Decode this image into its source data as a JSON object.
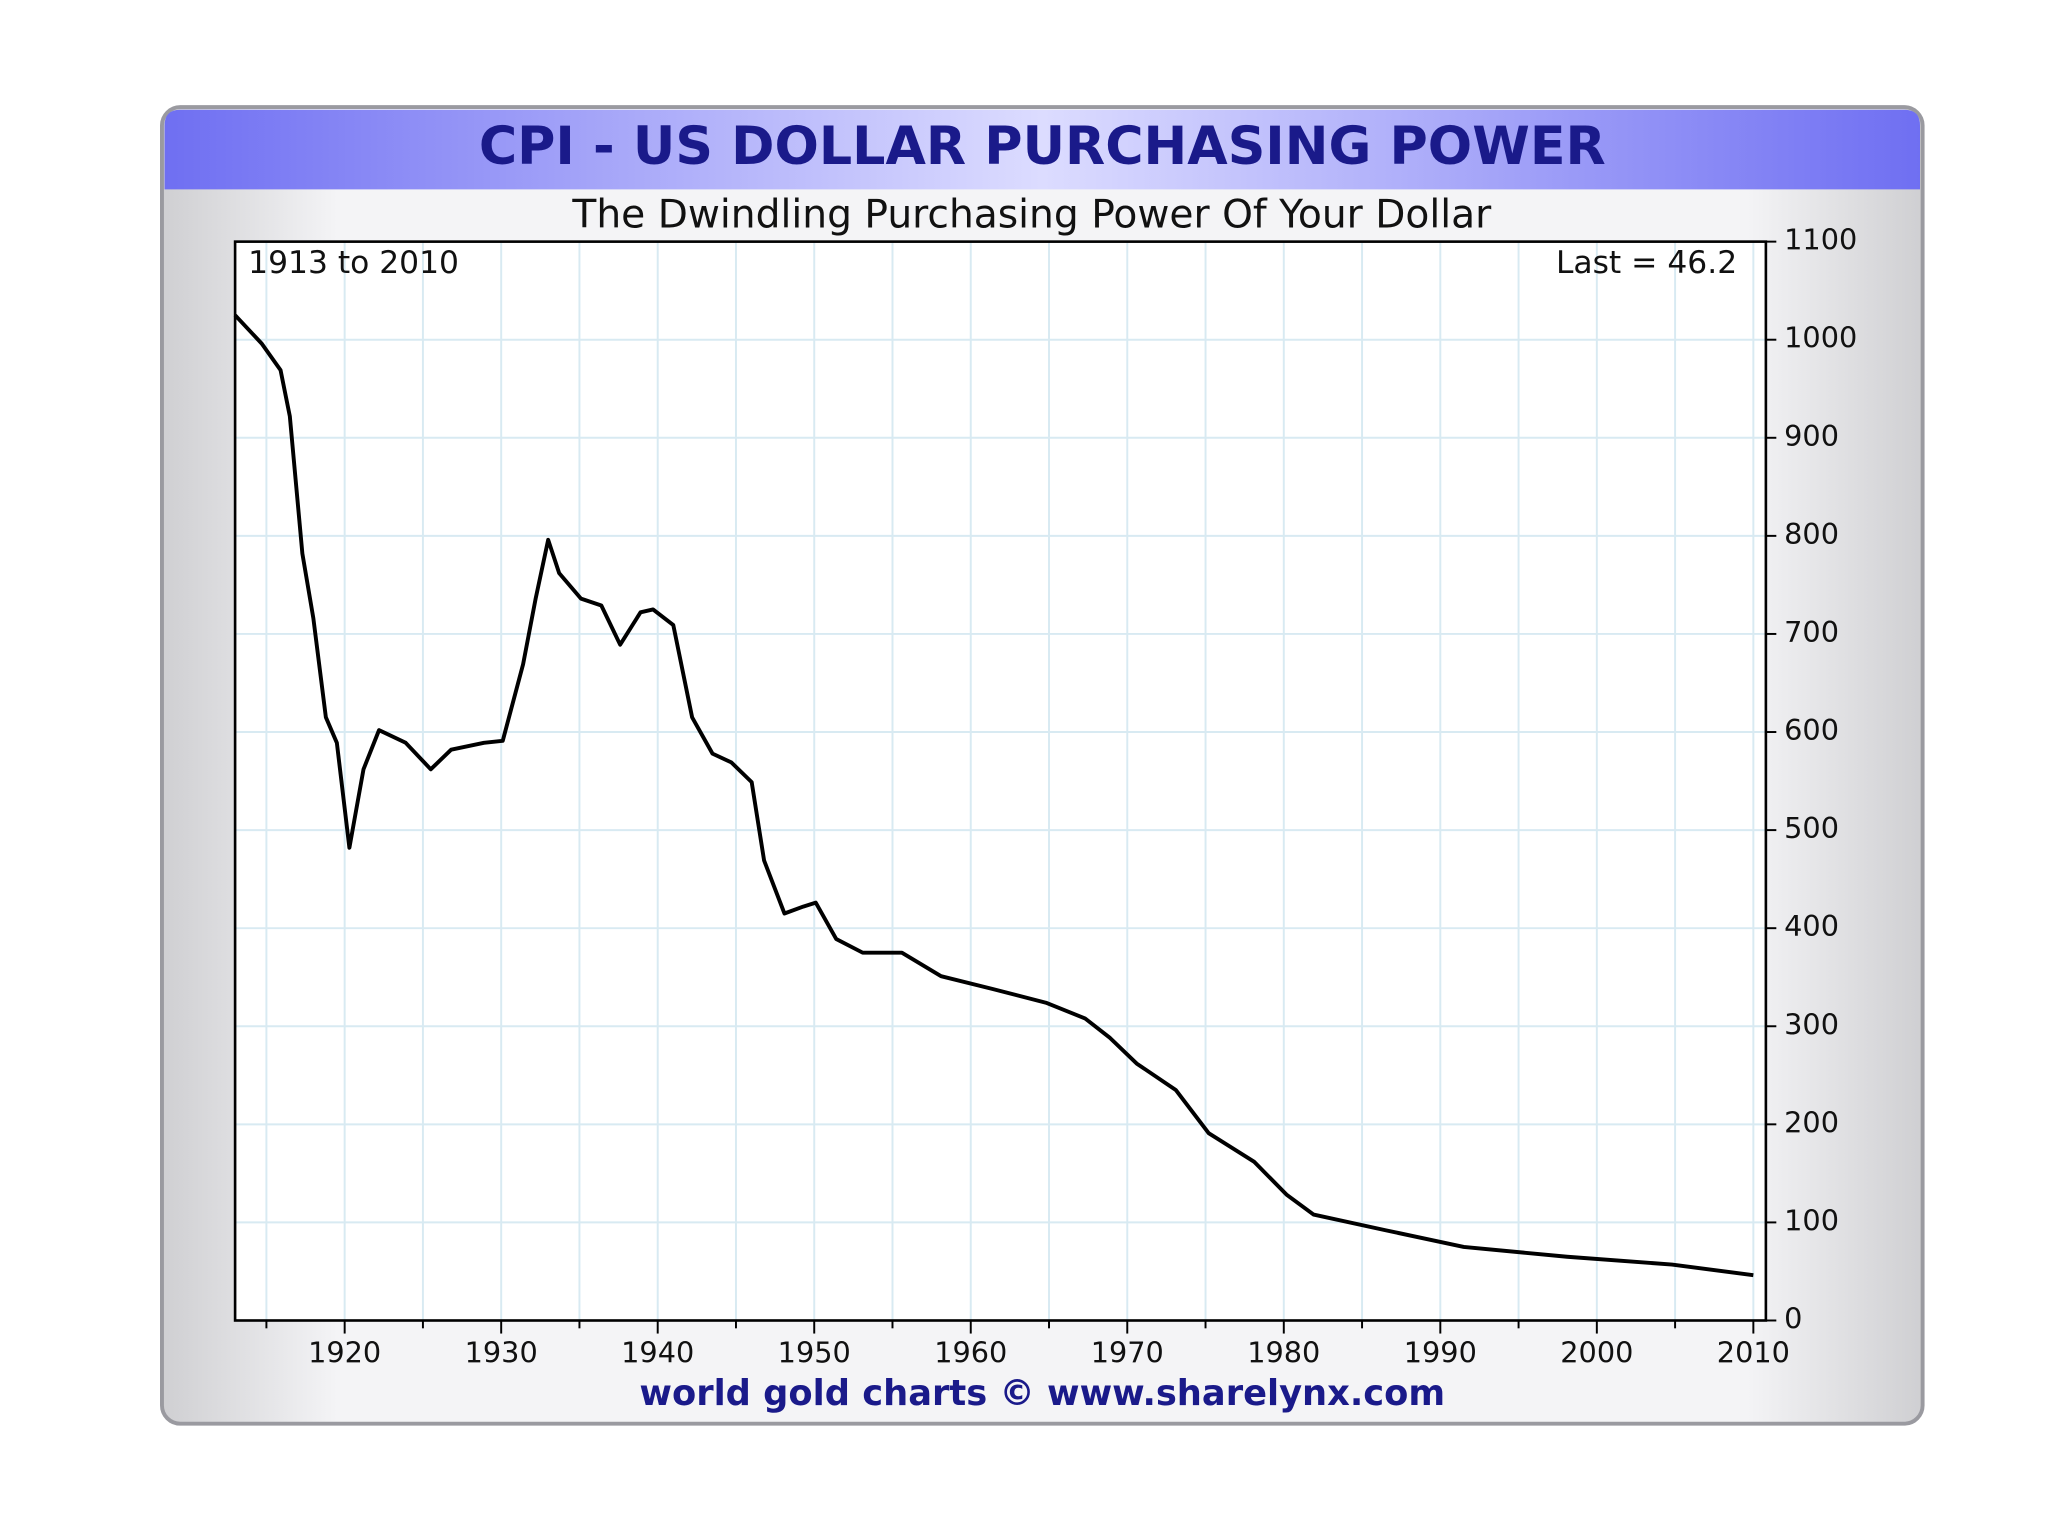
{
  "chart_data": {
    "type": "line",
    "title": "CPI - US DOLLAR PURCHASING POWER",
    "subtitle": "The Dwindling Purchasing Power Of Your Dollar",
    "annotations": [
      "1913 to 2010",
      "Last = 46.2"
    ],
    "footer": "world gold charts © www.sharelynx.com",
    "x": [
      1913,
      1914.7,
      1915.9,
      1916.5,
      1917.3,
      1918,
      1918.8,
      1919.5,
      1920.3,
      1921.2,
      1922.2,
      1923.9,
      1925.5,
      1926.8,
      1928.9,
      1930.1,
      1931.4,
      1932.2,
      1933,
      1933.7,
      1935.1,
      1936.4,
      1937.6,
      1938.9,
      1939.7,
      1941,
      1942.2,
      1943.5,
      1944.7,
      1946,
      1946.8,
      1948.1,
      1949.3,
      1950.1,
      1951.4,
      1953.1,
      1955.6,
      1958.1,
      1961.4,
      1964.8,
      1967.3,
      1968.9,
      1970.6,
      1973.1,
      1975.2,
      1978.1,
      1980.2,
      1981.9,
      1986.5,
      1991.5,
      1998.1,
      2004.8,
      2010
    ],
    "series": [
      {
        "name": "CPI purchasing power",
        "color": "#000000",
        "values": [
          1025,
          996,
          969,
          922,
          782,
          716,
          615,
          589,
          482,
          562,
          602,
          589,
          562,
          582,
          589,
          591,
          669,
          736,
          796,
          762,
          736,
          729,
          689,
          722,
          725,
          709,
          615,
          578,
          569,
          549,
          469,
          415,
          422,
          426,
          389,
          375,
          375,
          351,
          338,
          324,
          308,
          288,
          262,
          235,
          191,
          162,
          128,
          108,
          92,
          75,
          65,
          57,
          46.2
        ]
      }
    ],
    "xlim": [
      1913,
      2010.8
    ],
    "ylim": [
      0,
      1100
    ],
    "xticks": [
      1920,
      1930,
      1940,
      1950,
      1960,
      1970,
      1980,
      1990,
      2000,
      2010
    ],
    "xminorticks": [
      1915,
      1925,
      1935,
      1945,
      1955,
      1965,
      1975,
      1985,
      1995,
      2005
    ],
    "yticks": [
      0,
      100,
      200,
      300,
      400,
      500,
      600,
      700,
      800,
      900,
      1000,
      1100
    ],
    "grid": true
  }
}
